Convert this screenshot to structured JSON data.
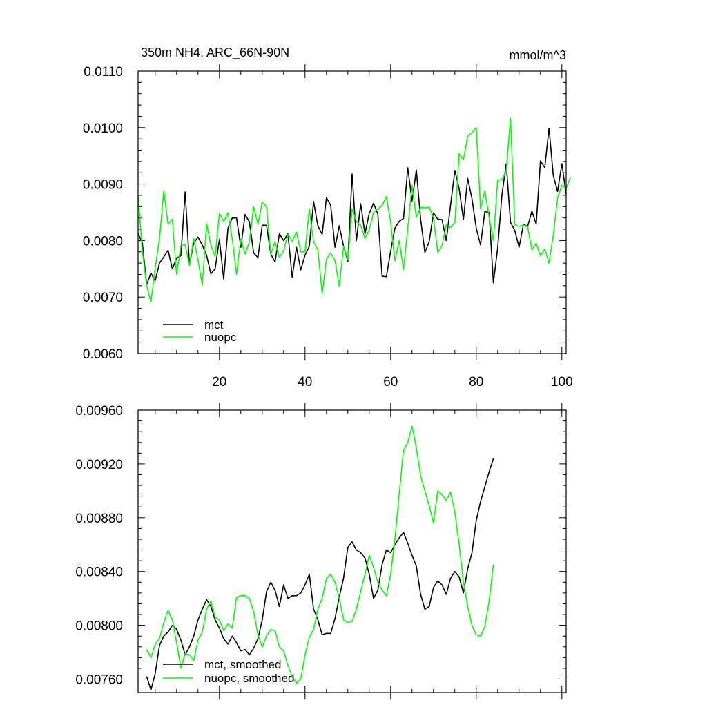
{
  "chart_data": [
    {
      "type": "line",
      "title": "350m NH4, ARC_66N-90N",
      "units": "mmol/m^3",
      "xlim": [
        1,
        101
      ],
      "ylim": [
        0.006,
        0.011
      ],
      "x_ticks": [
        20,
        40,
        60,
        80,
        100
      ],
      "y_ticks": [
        "0.0060",
        "0.0070",
        "0.0080",
        "0.0090",
        "0.0100",
        "0.0110"
      ],
      "legend_position": "bottom-left",
      "x_start": 1,
      "series": [
        {
          "name": "mct",
          "color": "#000000",
          "values": [
            0.00813,
            0.00795,
            0.00722,
            0.00742,
            0.00729,
            0.0076,
            0.00771,
            0.00783,
            0.0075,
            0.00769,
            0.00773,
            0.00886,
            0.00757,
            0.00796,
            0.00806,
            0.00792,
            0.00774,
            0.00741,
            0.0075,
            0.00802,
            0.00732,
            0.00822,
            0.0084,
            0.0084,
            0.00788,
            0.00846,
            0.00833,
            0.00778,
            0.0077,
            0.00827,
            0.00827,
            0.00776,
            0.00762,
            0.00812,
            0.008,
            0.00812,
            0.00735,
            0.00788,
            0.00748,
            0.00774,
            0.0079,
            0.00869,
            0.00826,
            0.00811,
            0.00876,
            0.00862,
            0.00788,
            0.00826,
            0.0079,
            0.00763,
            0.00918,
            0.008,
            0.00865,
            0.00812,
            0.00848,
            0.00866,
            0.00847,
            0.00737,
            0.00736,
            0.00781,
            0.00822,
            0.00834,
            0.00839,
            0.00929,
            0.0087,
            0.00925,
            0.00838,
            0.00779,
            0.00798,
            0.00849,
            0.00838,
            0.00837,
            0.008,
            0.00863,
            0.00924,
            0.00892,
            0.00837,
            0.0091,
            0.00874,
            0.00822,
            0.00792,
            0.00851,
            0.0085,
            0.00725,
            0.00787,
            0.00881,
            0.00936,
            0.00832,
            0.00818,
            0.00788,
            0.00828,
            0.00825,
            0.00852,
            0.00829,
            0.00941,
            0.00929,
            0.00999,
            0.00915,
            0.00887,
            0.00936,
            0.00882
          ]
        },
        {
          "name": "nuopc",
          "color": "#00ff00",
          "values": [
            0.0088,
            0.0078,
            0.0072,
            0.00691,
            0.00752,
            0.00803,
            0.00888,
            0.00829,
            0.00838,
            0.0074,
            0.00791,
            0.00793,
            0.00756,
            0.00804,
            0.00765,
            0.00721,
            0.0083,
            0.00792,
            0.00772,
            0.00848,
            0.00834,
            0.00849,
            0.00803,
            0.0074,
            0.00803,
            0.00776,
            0.00798,
            0.0086,
            0.00829,
            0.00868,
            0.0086,
            0.00776,
            0.00798,
            0.0077,
            0.00782,
            0.00811,
            0.00799,
            0.00815,
            0.0078,
            0.0078,
            0.00856,
            0.00797,
            0.00784,
            0.00706,
            0.00767,
            0.00778,
            0.00765,
            0.00719,
            0.0079,
            0.00766,
            0.00856,
            0.00834,
            0.00827,
            0.00804,
            0.00819,
            0.0085,
            0.00856,
            0.00862,
            0.00878,
            0.00832,
            0.00764,
            0.008,
            0.00749,
            0.00821,
            0.00897,
            0.00841,
            0.00859,
            0.00858,
            0.00859,
            0.00841,
            0.00779,
            0.00791,
            0.00828,
            0.00823,
            0.00832,
            0.00954,
            0.00943,
            0.00985,
            0.00991,
            0.01,
            0.00856,
            0.00888,
            0.00841,
            0.008,
            0.00907,
            0.00908,
            0.00922,
            0.01017,
            0.00828,
            0.00825,
            0.00827,
            0.00824,
            0.00784,
            0.00795,
            0.00773,
            0.00785,
            0.0076,
            0.0081,
            0.00876,
            0.00898,
            0.00892,
            0.00912
          ]
        }
      ]
    },
    {
      "type": "line",
      "title": "",
      "xlim": [
        1,
        101
      ],
      "ylim": [
        0.0075,
        0.0096
      ],
      "y_ticks": [
        "0.00760",
        "0.00800",
        "0.00840",
        "0.00880",
        "0.00920",
        "0.00960"
      ],
      "legend_position": "bottom-left",
      "x_start": 3,
      "series": [
        {
          "name": "mct, smoothed",
          "color": "#000000",
          "values": [
            0.00762,
            0.00752,
            0.00764,
            0.00785,
            0.00792,
            0.00795,
            0.008,
            0.00797,
            0.00789,
            0.00778,
            0.00784,
            0.00792,
            0.00804,
            0.00812,
            0.00819,
            0.00814,
            0.00804,
            0.00798,
            0.0079,
            0.00786,
            0.00792,
            0.00787,
            0.00781,
            0.00782,
            0.00778,
            0.00783,
            0.0079,
            0.00804,
            0.00825,
            0.00832,
            0.00826,
            0.00814,
            0.0083,
            0.0082,
            0.00822,
            0.00822,
            0.00824,
            0.0083,
            0.00838,
            0.00812,
            0.00804,
            0.00793,
            0.00794,
            0.00794,
            0.00805,
            0.00821,
            0.00835,
            0.00858,
            0.00862,
            0.00856,
            0.00854,
            0.0085,
            0.00838,
            0.0082,
            0.00826,
            0.00845,
            0.00856,
            0.00854,
            0.0086,
            0.00865,
            0.00869,
            0.00861,
            0.00852,
            0.00844,
            0.00823,
            0.00812,
            0.00814,
            0.00828,
            0.00833,
            0.0083,
            0.00823,
            0.00835,
            0.0084,
            0.00836,
            0.00824,
            0.00842,
            0.00854,
            0.00878,
            0.00892,
            0.00903,
            0.00914,
            0.00924
          ]
        },
        {
          "name": "nuopc, smoothed",
          "color": "#00ff00",
          "values": [
            0.00782,
            0.00776,
            0.00786,
            0.0079,
            0.00802,
            0.00811,
            0.00804,
            0.00787,
            0.00768,
            0.00779,
            0.00778,
            0.00774,
            0.00789,
            0.00795,
            0.00812,
            0.00818,
            0.00806,
            0.00804,
            0.00796,
            0.00801,
            0.00798,
            0.00821,
            0.00822,
            0.00822,
            0.0082,
            0.0081,
            0.00793,
            0.00784,
            0.00792,
            0.00797,
            0.00796,
            0.00784,
            0.00781,
            0.0077,
            0.00762,
            0.00757,
            0.0076,
            0.00778,
            0.00791,
            0.00797,
            0.00812,
            0.0082,
            0.00835,
            0.00838,
            0.00832,
            0.0082,
            0.00804,
            0.00802,
            0.00803,
            0.00812,
            0.00825,
            0.00838,
            0.00852,
            0.00843,
            0.00832,
            0.00826,
            0.00822,
            0.00838,
            0.00864,
            0.00898,
            0.0093,
            0.00936,
            0.00948,
            0.00932,
            0.00911,
            0.009,
            0.00889,
            0.00876,
            0.009,
            0.00897,
            0.00893,
            0.00899,
            0.00884,
            0.0086,
            0.00832,
            0.00814,
            0.008,
            0.00793,
            0.00792,
            0.00799,
            0.00818,
            0.00845
          ]
        }
      ]
    }
  ]
}
